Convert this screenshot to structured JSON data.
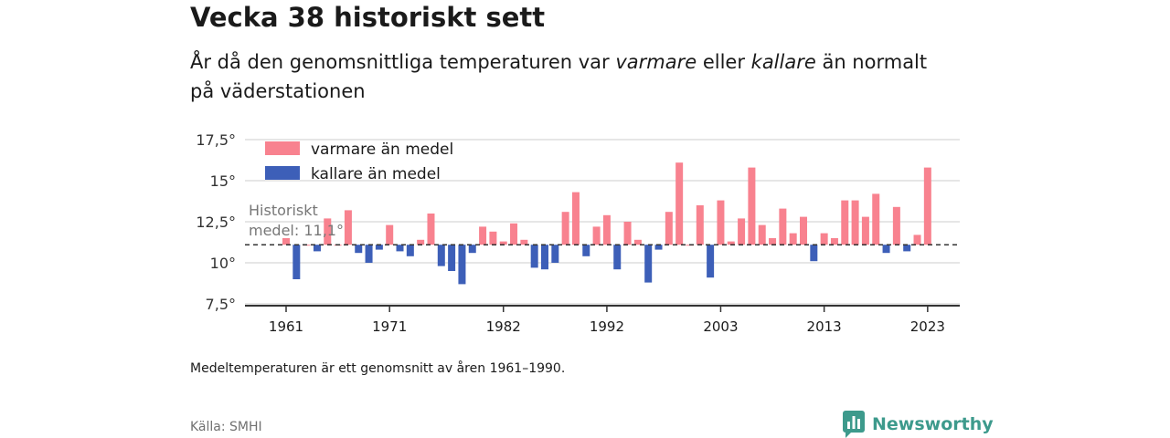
{
  "header": {
    "title": "Vecka 38 historiskt sett",
    "subtitle_parts": [
      "År då den genomsnittliga temperaturen var ",
      "varmare",
      " eller ",
      "kallare",
      " än normalt på väderstationen"
    ]
  },
  "chart_data": {
    "type": "bar",
    "baseline": 11.1,
    "baseline_label_line1": "Historiskt",
    "baseline_label_line2": "medel: 11,1°",
    "ylim": [
      7.5,
      17.5
    ],
    "y_ticks": [
      {
        "value": 7.5,
        "label": "7,5°"
      },
      {
        "value": 10,
        "label": "10°"
      },
      {
        "value": 12.5,
        "label": "12,5°"
      },
      {
        "value": 15,
        "label": "15°"
      },
      {
        "value": 17.5,
        "label": "17,5°"
      }
    ],
    "x_ticks": [
      {
        "value": 1961,
        "label": "1961"
      },
      {
        "value": 1971,
        "label": "1971"
      },
      {
        "value": 1982,
        "label": "1982"
      },
      {
        "value": 1992,
        "label": "1992"
      },
      {
        "value": 2003,
        "label": "2003"
      },
      {
        "value": 2013,
        "label": "2013"
      },
      {
        "value": 2023,
        "label": "2023"
      }
    ],
    "legend": [
      {
        "label": "varmare än medel",
        "color": "#f8828f"
      },
      {
        "label": "kallare än medel",
        "color": "#3d5fb8"
      }
    ],
    "legend_position": "top-left",
    "grid": true,
    "years": [
      1961,
      1962,
      1963,
      1964,
      1965,
      1966,
      1967,
      1968,
      1969,
      1970,
      1971,
      1972,
      1973,
      1974,
      1975,
      1976,
      1977,
      1978,
      1979,
      1980,
      1981,
      1982,
      1983,
      1984,
      1985,
      1986,
      1987,
      1988,
      1989,
      1990,
      1991,
      1992,
      1993,
      1994,
      1995,
      1996,
      1997,
      1998,
      1999,
      2000,
      2001,
      2002,
      2003,
      2004,
      2005,
      2006,
      2007,
      2008,
      2009,
      2010,
      2011,
      2012,
      2013,
      2014,
      2015,
      2016,
      2017,
      2018,
      2019,
      2020,
      2021,
      2022,
      2023
    ],
    "values": [
      11.5,
      9.0,
      11.1,
      10.7,
      12.7,
      11.1,
      13.2,
      10.6,
      10.0,
      10.8,
      12.3,
      10.7,
      10.4,
      11.4,
      13.0,
      9.8,
      9.5,
      8.7,
      10.6,
      12.2,
      11.9,
      11.3,
      12.4,
      11.4,
      9.7,
      9.6,
      10.0,
      13.1,
      14.3,
      10.4,
      12.2,
      12.9,
      9.6,
      12.5,
      11.4,
      8.8,
      10.8,
      13.1,
      16.1,
      11.1,
      13.5,
      9.1,
      13.8,
      11.3,
      12.7,
      15.8,
      12.3,
      11.5,
      13.3,
      11.8,
      12.8,
      10.1,
      11.8,
      11.5,
      13.8,
      13.8,
      12.8,
      14.2,
      10.6,
      13.4,
      10.7,
      11.7,
      15.8
    ],
    "colors": {
      "warm": "#f8828f",
      "cold": "#3d5fb8",
      "baseline": "#333333",
      "grid": "#dddddd",
      "axis": "#333333"
    }
  },
  "footer": {
    "note": "Medeltemperaturen är ett genomsnitt av åren 1961–1990.",
    "source": "Källa: SMHI",
    "brand": "Newsworthy",
    "brand_color": "#3d9a8c"
  }
}
